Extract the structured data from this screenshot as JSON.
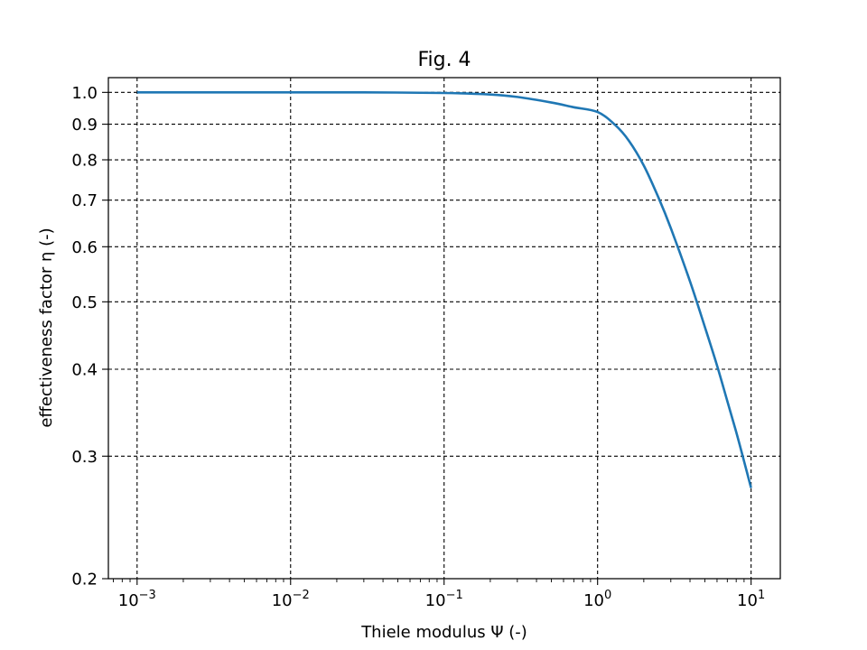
{
  "chart_data": {
    "type": "line",
    "title": "Fig. 4",
    "xlabel": "Thiele modulus Ψ (-)",
    "ylabel": "effectiveness factor η (-)",
    "xscale": "log",
    "yscale": "log",
    "xlim": [
      0.00065,
      15.5
    ],
    "ylim": [
      0.2,
      1.05
    ],
    "grid": true,
    "grid_style": "dashed",
    "series_color": "#1f77b4",
    "x_ticks": [
      {
        "value": 0.001,
        "base": "10",
        "exp": "−3"
      },
      {
        "value": 0.01,
        "base": "10",
        "exp": "−2"
      },
      {
        "value": 0.1,
        "base": "10",
        "exp": "−1"
      },
      {
        "value": 1,
        "base": "10",
        "exp": "0"
      },
      {
        "value": 10,
        "base": "10",
        "exp": "1"
      }
    ],
    "y_ticks": [
      {
        "value": 0.2,
        "label": "0.2"
      },
      {
        "value": 0.3,
        "label": "0.3"
      },
      {
        "value": 0.4,
        "label": "0.4"
      },
      {
        "value": 0.5,
        "label": "0.5"
      },
      {
        "value": 0.6,
        "label": "0.6"
      },
      {
        "value": 0.7,
        "label": "0.7"
      },
      {
        "value": 0.8,
        "label": "0.8"
      },
      {
        "value": 0.9,
        "label": "0.9"
      },
      {
        "value": 1.0,
        "label": "1.0"
      }
    ],
    "series": [
      {
        "x": [
          0.001,
          0.003,
          0.01,
          0.03,
          0.1,
          0.2,
          0.3,
          0.5,
          0.7,
          1.0,
          1.3,
          1.6,
          2.0,
          2.5,
          3.0,
          4.0,
          5.0,
          6.0,
          7.0,
          8.0,
          9.0,
          10.0
        ],
        "y": [
          1.0,
          1.0,
          1.0,
          1.0,
          0.998,
          0.993,
          0.985,
          0.967,
          0.952,
          0.937,
          0.898,
          0.852,
          0.785,
          0.705,
          0.638,
          0.535,
          0.46,
          0.405,
          0.36,
          0.325,
          0.295,
          0.27
        ]
      }
    ]
  }
}
